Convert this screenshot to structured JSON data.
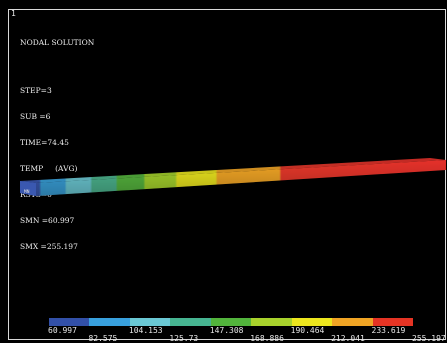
{
  "window": {
    "number": "1"
  },
  "info": {
    "title": "NODAL SOLUTION",
    "step": "STEP=3",
    "sub": "SUB =6",
    "time": "TIME=74.45",
    "item": "TEMP     (AVG)",
    "rsys": "RSYS=0",
    "smn": "SMN =60.997",
    "smx": "SMX =255.197"
  },
  "model": {
    "node_label": "MN"
  },
  "legend": {
    "colors": [
      "#3250a8",
      "#38a0dd",
      "#6ac8d4",
      "#46b491",
      "#52b43c",
      "#a8d22c",
      "#ece61e",
      "#f0a424",
      "#e53424"
    ],
    "upper_labels": [
      "60.997",
      "104.153",
      "147.308",
      "190.464",
      "233.619"
    ],
    "lower_labels": [
      "82.575",
      "125.73",
      "168.886",
      "212.041",
      "255.197"
    ]
  }
}
